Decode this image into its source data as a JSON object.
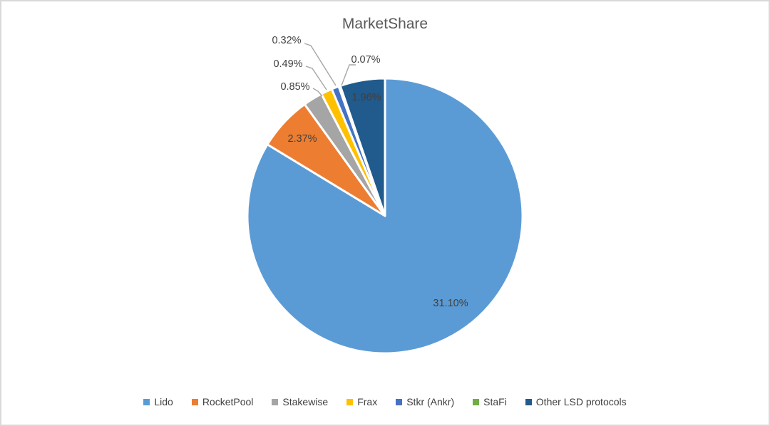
{
  "chart_data": {
    "type": "pie",
    "title": "MarketShare",
    "categories": [
      "Lido",
      "RocketPool",
      "Stakewise",
      "Frax",
      "Stkr (Ankr)",
      "StaFi",
      "Other LSD protocols"
    ],
    "values": [
      31.1,
      2.37,
      0.85,
      0.49,
      0.32,
      0.07,
      1.96
    ],
    "data_labels": [
      "31.10%",
      "2.37%",
      "0.85%",
      "0.49%",
      "0.32%",
      "0.07%",
      "1.96%"
    ],
    "colors": [
      "#5B9BD5",
      "#ED7D31",
      "#A5A5A5",
      "#FFC000",
      "#4472C4",
      "#70AD47",
      "#215A8C"
    ],
    "legend_position": "bottom",
    "start_angle": 0,
    "direction": "clockwise",
    "title_color": "#595959",
    "data_label_color": "#404040",
    "legend_text_color": "#404040",
    "slice_border_color": "#FFFFFF",
    "leader_line_color": "#A6A6A6"
  }
}
